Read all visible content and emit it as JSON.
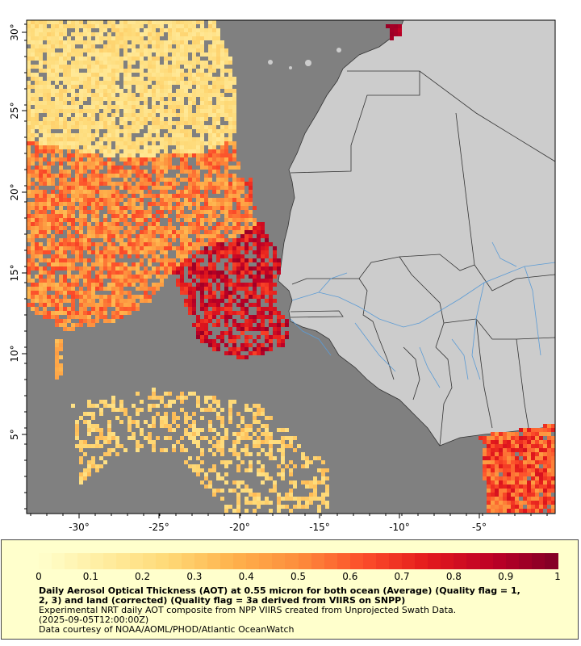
{
  "map": {
    "lon_labels": [
      "-30°",
      "-25°",
      "-20°",
      "-15°",
      "-10°",
      "-5°"
    ],
    "lat_labels": [
      "30°",
      "25°",
      "20°",
      "15°",
      "10°",
      "5°"
    ],
    "colors": {
      "ocean": "#808080",
      "land": "#cccccc",
      "border": "#333333",
      "river": "#5b9bd5"
    }
  },
  "legend": {
    "colorbar_ticks": [
      "0",
      "0.1",
      "0.2",
      "0.3",
      "0.4",
      "0.5",
      "0.6",
      "0.7",
      "0.8",
      "0.9",
      "1"
    ],
    "color_stops": [
      "#ffffcc",
      "#ffeda0",
      "#fed976",
      "#feb24c",
      "#fd8d3c",
      "#fc4e2a",
      "#e31a1c",
      "#bd0026",
      "#800026"
    ]
  },
  "caption": {
    "title_line1": "Daily Aerosol Optical Thickness (AOT) at 0.55 micron for both ocean (Average) (Quality flag = 1,",
    "title_line2": "2, 3) and land (corrected) (Quality flag = 3a derived from VIIRS on SNPP)",
    "line3": "Experimental NRT daily AOT composite from NPP VIIRS created from Unprojected Swath Data.",
    "line4": "(2025-09-05T12:00:00Z)",
    "line5": "Data courtesy of NOAA/AOML/PHOD/Atlantic OceanWatch"
  }
}
